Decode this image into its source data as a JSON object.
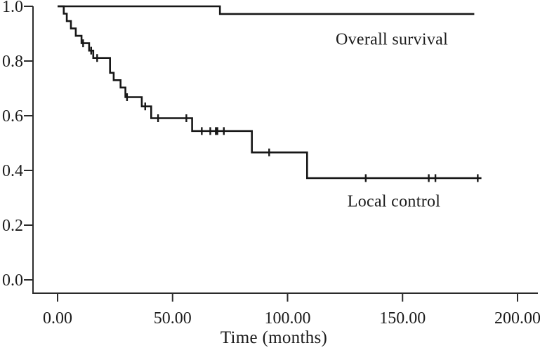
{
  "chart_data": {
    "type": "line",
    "subtype": "kaplan-meier-step-curves",
    "title": "",
    "xlabel": "Time (months)",
    "ylabel": "",
    "xlim": [
      0,
      200
    ],
    "ylim": [
      0.0,
      1.0
    ],
    "grid": false,
    "legend_position": "inline-annotations",
    "line_color": "#171717",
    "axis_color": "#2b2b2b",
    "x_ticks": {
      "values": [
        0,
        50,
        100,
        150,
        200
      ],
      "labels": [
        "0.00",
        "50.00",
        "100.00",
        "150.00",
        "200.00"
      ]
    },
    "y_ticks": {
      "values": [
        1.0,
        0.8,
        0.6,
        0.4,
        0.2,
        0.0
      ],
      "labels": [
        "1.0",
        "0.8",
        "0.6",
        "0.4",
        "0.2",
        "0.0"
      ]
    },
    "series": [
      {
        "name": "Overall survival",
        "points": [
          {
            "t": 0,
            "s": 1.0
          },
          {
            "t": 70.6,
            "s": 0.972
          }
        ],
        "end_t": 181.2,
        "censors": []
      },
      {
        "name": "Local control",
        "points": [
          {
            "t": 0,
            "s": 1.0
          },
          {
            "t": 2.7,
            "s": 0.973
          },
          {
            "t": 4.0,
            "s": 0.946
          },
          {
            "t": 5.8,
            "s": 0.919
          },
          {
            "t": 7.9,
            "s": 0.892
          },
          {
            "t": 10.4,
            "s": 0.865
          },
          {
            "t": 13.7,
            "s": 0.838
          },
          {
            "t": 15.5,
            "s": 0.811
          },
          {
            "t": 22.8,
            "s": 0.757
          },
          {
            "t": 24.4,
            "s": 0.73
          },
          {
            "t": 27.4,
            "s": 0.703
          },
          {
            "t": 29.5,
            "s": 0.668
          },
          {
            "t": 36.6,
            "s": 0.634
          },
          {
            "t": 40.7,
            "s": 0.591
          },
          {
            "t": 58.5,
            "s": 0.544
          },
          {
            "t": 84.5,
            "s": 0.466
          },
          {
            "t": 108.5,
            "s": 0.372
          }
        ],
        "end_t": 184.3,
        "censors": [
          {
            "t": 11.1,
            "s": 0.865
          },
          {
            "t": 14.6,
            "s": 0.838
          },
          {
            "t": 17.2,
            "s": 0.811
          },
          {
            "t": 30.2,
            "s": 0.668
          },
          {
            "t": 38.1,
            "s": 0.634
          },
          {
            "t": 43.7,
            "s": 0.591
          },
          {
            "t": 56.0,
            "s": 0.591
          },
          {
            "t": 62.7,
            "s": 0.544
          },
          {
            "t": 66.4,
            "s": 0.544
          },
          {
            "t": 68.8,
            "s": 0.544
          },
          {
            "t": 69.5,
            "s": 0.544
          },
          {
            "t": 72.3,
            "s": 0.544
          },
          {
            "t": 92.0,
            "s": 0.466
          },
          {
            "t": 134.0,
            "s": 0.372
          },
          {
            "t": 161.4,
            "s": 0.372
          },
          {
            "t": 164.3,
            "s": 0.372
          },
          {
            "t": 182.7,
            "s": 0.372
          }
        ]
      }
    ],
    "annotations": [
      {
        "text": "Overall survival"
      },
      {
        "text": "Local control"
      }
    ]
  }
}
